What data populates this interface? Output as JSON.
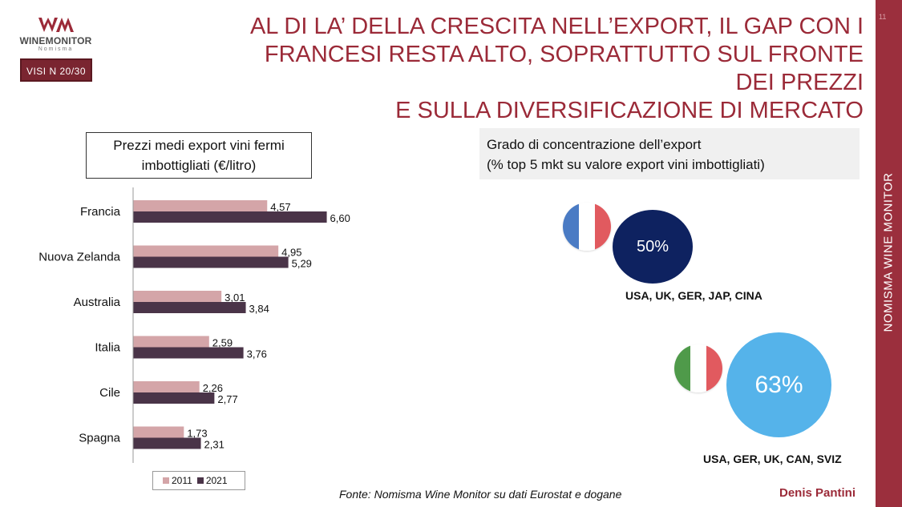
{
  "logo": {
    "name": "WINEMONITOR",
    "sub": "Nomisma",
    "badge": "VISI N 20/30"
  },
  "title": {
    "lines": [
      "AL DI LA’ DELLA CRESCITA NELL’EXPORT, IL GAP CON I",
      "FRANCESI RESTA ALTO, SOPRATTUTTO SUL FRONTE DEI PREZZI",
      "E SULLA DIVERSIFICAZIONE DI MERCATO"
    ]
  },
  "side_label": "NOMISMA WINE MONITOR",
  "page_number": "11",
  "colors": {
    "accent": "#9b2a38",
    "bar_2011": "#d4a5a8",
    "bar_2021": "#4a3448",
    "circle_fr": "#0e2260",
    "circle_it": "#55b3ea"
  },
  "chart_data": {
    "type": "bar",
    "orientation": "horizontal",
    "title_lines": [
      "Prezzi medi export vini fermi",
      "imbottigliati (€/litro)"
    ],
    "categories": [
      "Francia",
      "Nuova Zelanda",
      "Australia",
      "Italia",
      "Cile",
      "Spagna"
    ],
    "series": [
      {
        "name": "2011",
        "values": [
          4.57,
          4.95,
          3.01,
          2.59,
          2.26,
          1.73
        ],
        "labels": [
          "4,57",
          "4,95",
          "3,01",
          "2,59",
          "2,26",
          "1,73"
        ]
      },
      {
        "name": "2021",
        "values": [
          6.6,
          5.29,
          3.84,
          3.76,
          2.77,
          2.31
        ],
        "labels": [
          "6,60",
          "5,29",
          "3,84",
          "3,76",
          "2,77",
          "2,31"
        ]
      }
    ],
    "xlim": [
      0,
      7
    ],
    "grid": false,
    "legend_position": "bottom"
  },
  "concentration": {
    "title_lines": [
      "Grado di concentrazione dell’export",
      "(% top 5 mkt su valore export vini imbottigliati)"
    ],
    "france": {
      "value_label": "50%",
      "markets": "USA, UK, GER, JAP, CINA"
    },
    "italy": {
      "value_label": "63%",
      "markets": "USA, GER, UK, CAN, SVIZ"
    }
  },
  "footer": {
    "source": "Fonte: Nomisma Wine Monitor su dati Eurostat e dogane",
    "author": "Denis Pantini"
  }
}
